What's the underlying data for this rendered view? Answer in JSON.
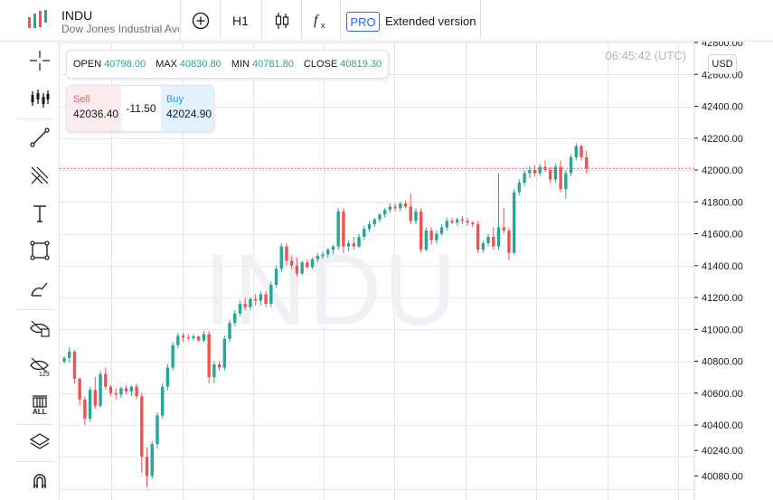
{
  "header": {
    "symbol": "INDU",
    "description": "Dow Jones Industrial Average",
    "timeframe": "H1",
    "pro_badge": "PRO",
    "extended_label": "Extended version"
  },
  "toolbar_icons": {
    "add": "plus-circle-icon",
    "chart_type": "candlestick-icon",
    "indicators": "fx-icon"
  },
  "left_tools": [
    "crosshair-icon",
    "bar-pattern-icon",
    "trend-line-icon",
    "fork-icon",
    "text-icon",
    "rectangle-icon",
    "brush-icon",
    "hide-drawings-icon",
    "hide-labels-icon",
    "delete-all-icon",
    "layers-icon",
    "magnet-icon"
  ],
  "left_tool_labels": {
    "delete_all": "ALL",
    "hide_labels": "123"
  },
  "chart": {
    "watermark": "INDU",
    "time": "06:45:42 (UTC)",
    "currency": "USD",
    "ohlc": {
      "open_label": "OPEN",
      "open": "40798.00",
      "max_label": "MAX",
      "max": "40830.80",
      "min_label": "MIN",
      "min": "40781.80",
      "close_label": "CLOSE",
      "close": "40819.30"
    },
    "trade": {
      "sell_label": "Sell",
      "sell_price": "42036.40",
      "spread": "-11.50",
      "buy_label": "Buy",
      "buy_price": "42024.90"
    }
  },
  "colors": {
    "up": "#26a69a",
    "down": "#ef5350",
    "accent": "#2962ff",
    "grid": "#e6e8ee",
    "current_line": "#ef5350"
  },
  "chart_data": {
    "type": "candlestick",
    "y_axis_labels": [
      42800,
      42600,
      42400,
      42200,
      42000,
      41800,
      41600,
      41400,
      41200,
      41000,
      40800,
      40600,
      40400,
      40240,
      40080
    ],
    "ylim": [
      40010,
      42815
    ],
    "current_price": 42010,
    "grid": true,
    "candles": [
      {
        "o": 40798,
        "h": 40831,
        "l": 40782,
        "c": 40819
      },
      {
        "o": 40820,
        "h": 40890,
        "l": 40790,
        "c": 40860
      },
      {
        "o": 40860,
        "h": 40870,
        "l": 40660,
        "c": 40690
      },
      {
        "o": 40690,
        "h": 40700,
        "l": 40520,
        "c": 40560
      },
      {
        "o": 40560,
        "h": 40580,
        "l": 40400,
        "c": 40440
      },
      {
        "o": 40440,
        "h": 40640,
        "l": 40420,
        "c": 40620
      },
      {
        "o": 40620,
        "h": 40700,
        "l": 40500,
        "c": 40520
      },
      {
        "o": 40520,
        "h": 40740,
        "l": 40510,
        "c": 40720
      },
      {
        "o": 40720,
        "h": 40760,
        "l": 40620,
        "c": 40640
      },
      {
        "o": 40640,
        "h": 40650,
        "l": 40580,
        "c": 40600
      },
      {
        "o": 40600,
        "h": 40630,
        "l": 40560,
        "c": 40590
      },
      {
        "o": 40590,
        "h": 40640,
        "l": 40570,
        "c": 40630
      },
      {
        "o": 40630,
        "h": 40650,
        "l": 40590,
        "c": 40610
      },
      {
        "o": 40610,
        "h": 40650,
        "l": 40580,
        "c": 40640
      },
      {
        "o": 40640,
        "h": 40660,
        "l": 40560,
        "c": 40580
      },
      {
        "o": 40580,
        "h": 40600,
        "l": 40100,
        "c": 40200
      },
      {
        "o": 40200,
        "h": 40260,
        "l": 40010,
        "c": 40080
      },
      {
        "o": 40080,
        "h": 40300,
        "l": 40060,
        "c": 40280
      },
      {
        "o": 40280,
        "h": 40480,
        "l": 40250,
        "c": 40460
      },
      {
        "o": 40460,
        "h": 40660,
        "l": 40440,
        "c": 40640
      },
      {
        "o": 40640,
        "h": 40780,
        "l": 40620,
        "c": 40760
      },
      {
        "o": 40760,
        "h": 40920,
        "l": 40740,
        "c": 40900
      },
      {
        "o": 40900,
        "h": 40980,
        "l": 40880,
        "c": 40960
      },
      {
        "o": 40960,
        "h": 40980,
        "l": 40920,
        "c": 40950
      },
      {
        "o": 40950,
        "h": 40970,
        "l": 40930,
        "c": 40945
      },
      {
        "o": 40945,
        "h": 40970,
        "l": 40930,
        "c": 40955
      },
      {
        "o": 40955,
        "h": 40960,
        "l": 40920,
        "c": 40930
      },
      {
        "o": 40930,
        "h": 40990,
        "l": 40920,
        "c": 40970
      },
      {
        "o": 40970,
        "h": 40990,
        "l": 40660,
        "c": 40700
      },
      {
        "o": 40700,
        "h": 40800,
        "l": 40660,
        "c": 40780
      },
      {
        "o": 40780,
        "h": 40800,
        "l": 40740,
        "c": 40760
      },
      {
        "o": 40760,
        "h": 40960,
        "l": 40740,
        "c": 40940
      },
      {
        "o": 40940,
        "h": 41060,
        "l": 40920,
        "c": 41040
      },
      {
        "o": 41040,
        "h": 41120,
        "l": 41020,
        "c": 41100
      },
      {
        "o": 41100,
        "h": 41180,
        "l": 41080,
        "c": 41160
      },
      {
        "o": 41160,
        "h": 41200,
        "l": 41120,
        "c": 41140
      },
      {
        "o": 41140,
        "h": 41200,
        "l": 41120,
        "c": 41190
      },
      {
        "o": 41190,
        "h": 41220,
        "l": 41150,
        "c": 41180
      },
      {
        "o": 41180,
        "h": 41240,
        "l": 41150,
        "c": 41220
      },
      {
        "o": 41220,
        "h": 41240,
        "l": 41140,
        "c": 41160
      },
      {
        "o": 41160,
        "h": 41300,
        "l": 41140,
        "c": 41280
      },
      {
        "o": 41280,
        "h": 41400,
        "l": 41260,
        "c": 41380
      },
      {
        "o": 41380,
        "h": 41540,
        "l": 41360,
        "c": 41520
      },
      {
        "o": 41520,
        "h": 41540,
        "l": 41400,
        "c": 41430
      },
      {
        "o": 41430,
        "h": 41460,
        "l": 41380,
        "c": 41400
      },
      {
        "o": 41400,
        "h": 41450,
        "l": 41330,
        "c": 41350
      },
      {
        "o": 41350,
        "h": 41430,
        "l": 41340,
        "c": 41420
      },
      {
        "o": 41420,
        "h": 41440,
        "l": 41380,
        "c": 41390
      },
      {
        "o": 41390,
        "h": 41450,
        "l": 41380,
        "c": 41440
      },
      {
        "o": 41440,
        "h": 41480,
        "l": 41420,
        "c": 41460
      },
      {
        "o": 41460,
        "h": 41490,
        "l": 41440,
        "c": 41470
      },
      {
        "o": 41470,
        "h": 41510,
        "l": 41450,
        "c": 41500
      },
      {
        "o": 41500,
        "h": 41530,
        "l": 41470,
        "c": 41520
      },
      {
        "o": 41520,
        "h": 41760,
        "l": 41500,
        "c": 41740
      },
      {
        "o": 41740,
        "h": 41760,
        "l": 41480,
        "c": 41520
      },
      {
        "o": 41520,
        "h": 41560,
        "l": 41490,
        "c": 41540
      },
      {
        "o": 41540,
        "h": 41580,
        "l": 41500,
        "c": 41520
      },
      {
        "o": 41520,
        "h": 41600,
        "l": 41510,
        "c": 41580
      },
      {
        "o": 41580,
        "h": 41650,
        "l": 41560,
        "c": 41630
      },
      {
        "o": 41630,
        "h": 41680,
        "l": 41610,
        "c": 41660
      },
      {
        "o": 41660,
        "h": 41700,
        "l": 41640,
        "c": 41690
      },
      {
        "o": 41690,
        "h": 41730,
        "l": 41670,
        "c": 41720
      },
      {
        "o": 41720,
        "h": 41760,
        "l": 41700,
        "c": 41750
      },
      {
        "o": 41750,
        "h": 41790,
        "l": 41730,
        "c": 41770
      },
      {
        "o": 41770,
        "h": 41790,
        "l": 41740,
        "c": 41760
      },
      {
        "o": 41760,
        "h": 41800,
        "l": 41740,
        "c": 41790
      },
      {
        "o": 41790,
        "h": 41810,
        "l": 41760,
        "c": 41770
      },
      {
        "o": 41770,
        "h": 41850,
        "l": 41660,
        "c": 41680
      },
      {
        "o": 41680,
        "h": 41760,
        "l": 41660,
        "c": 41740
      },
      {
        "o": 41740,
        "h": 41760,
        "l": 41480,
        "c": 41500
      },
      {
        "o": 41500,
        "h": 41640,
        "l": 41490,
        "c": 41620
      },
      {
        "o": 41620,
        "h": 41640,
        "l": 41530,
        "c": 41560
      },
      {
        "o": 41560,
        "h": 41620,
        "l": 41540,
        "c": 41600
      },
      {
        "o": 41600,
        "h": 41660,
        "l": 41590,
        "c": 41640
      },
      {
        "o": 41640,
        "h": 41700,
        "l": 41620,
        "c": 41680
      },
      {
        "o": 41680,
        "h": 41700,
        "l": 41660,
        "c": 41670
      },
      {
        "o": 41670,
        "h": 41700,
        "l": 41650,
        "c": 41690
      },
      {
        "o": 41690,
        "h": 41710,
        "l": 41660,
        "c": 41680
      },
      {
        "o": 41680,
        "h": 41700,
        "l": 41650,
        "c": 41670
      },
      {
        "o": 41670,
        "h": 41680,
        "l": 41640,
        "c": 41660
      },
      {
        "o": 41660,
        "h": 41680,
        "l": 41480,
        "c": 41500
      },
      {
        "o": 41500,
        "h": 41560,
        "l": 41480,
        "c": 41540
      },
      {
        "o": 41540,
        "h": 41600,
        "l": 41520,
        "c": 41580
      },
      {
        "o": 41580,
        "h": 41640,
        "l": 41500,
        "c": 41520
      },
      {
        "o": 41520,
        "h": 41980,
        "l": 41500,
        "c": 41640
      },
      {
        "o": 41640,
        "h": 41760,
        "l": 41600,
        "c": 41620
      },
      {
        "o": 41620,
        "h": 41640,
        "l": 41430,
        "c": 41480
      },
      {
        "o": 41480,
        "h": 41880,
        "l": 41470,
        "c": 41860
      },
      {
        "o": 41860,
        "h": 41940,
        "l": 41840,
        "c": 41920
      },
      {
        "o": 41920,
        "h": 42000,
        "l": 41900,
        "c": 41980
      },
      {
        "o": 41980,
        "h": 42020,
        "l": 41950,
        "c": 42000
      },
      {
        "o": 42000,
        "h": 42030,
        "l": 41960,
        "c": 41980
      },
      {
        "o": 41980,
        "h": 42040,
        "l": 41960,
        "c": 42020
      },
      {
        "o": 42020,
        "h": 42060,
        "l": 41990,
        "c": 42000
      },
      {
        "o": 42000,
        "h": 42020,
        "l": 41920,
        "c": 41940
      },
      {
        "o": 41940,
        "h": 42040,
        "l": 41920,
        "c": 42020
      },
      {
        "o": 42020,
        "h": 42060,
        "l": 41860,
        "c": 41880
      },
      {
        "o": 41880,
        "h": 42000,
        "l": 41820,
        "c": 41980
      },
      {
        "o": 41980,
        "h": 42100,
        "l": 41960,
        "c": 42080
      },
      {
        "o": 42080,
        "h": 42170,
        "l": 42060,
        "c": 42150
      },
      {
        "o": 42150,
        "h": 42160,
        "l": 42060,
        "c": 42080
      },
      {
        "o": 42080,
        "h": 42120,
        "l": 41980,
        "c": 42010
      }
    ]
  }
}
